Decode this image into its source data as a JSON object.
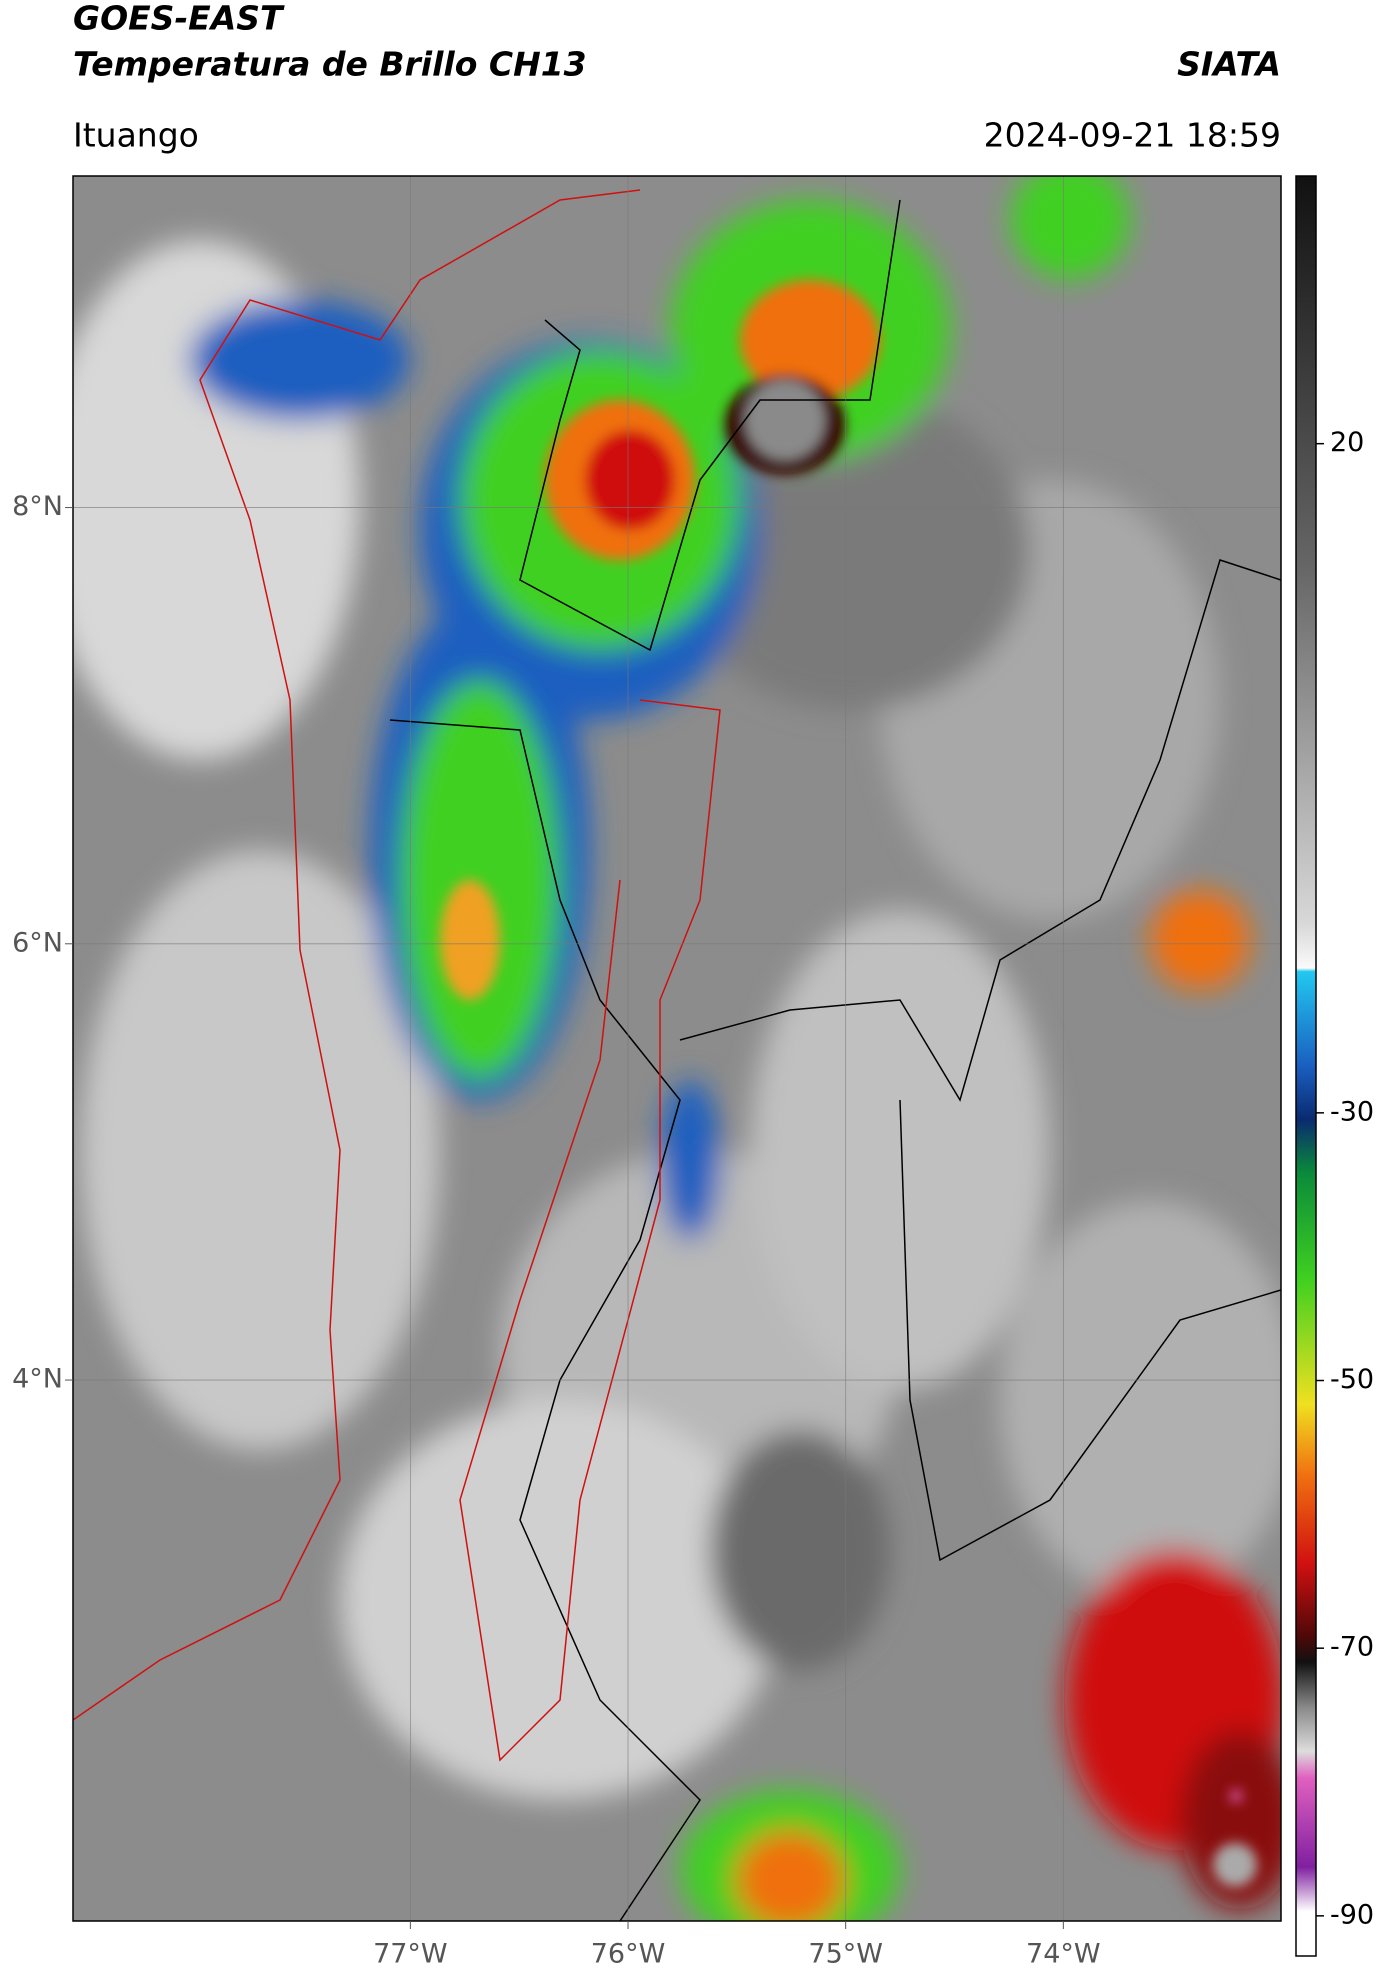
{
  "header": {
    "satellite": "GOES-EAST",
    "product": "Temperatura de Brillo CH13",
    "source": "SIATA",
    "region": "Ituango",
    "datetime": "2024-09-21 18:59"
  },
  "map": {
    "lonlim": [
      -78.55,
      -73.0
    ],
    "latlim": [
      1.52,
      9.52
    ],
    "lonticks": [
      {
        "value": -77,
        "label": "77°W"
      },
      {
        "value": -76,
        "label": "76°W"
      },
      {
        "value": -75,
        "label": "75°W"
      },
      {
        "value": -74,
        "label": "74°W"
      }
    ],
    "latticks": [
      {
        "value": 8,
        "label": "8°N"
      },
      {
        "value": 6,
        "label": "6°N"
      },
      {
        "value": 4,
        "label": "4°N"
      }
    ],
    "grid": true
  },
  "colorbar": {
    "lim": [
      -93,
      40
    ],
    "ticks": [
      20,
      -30,
      -50,
      -70,
      -90
    ]
  }
}
